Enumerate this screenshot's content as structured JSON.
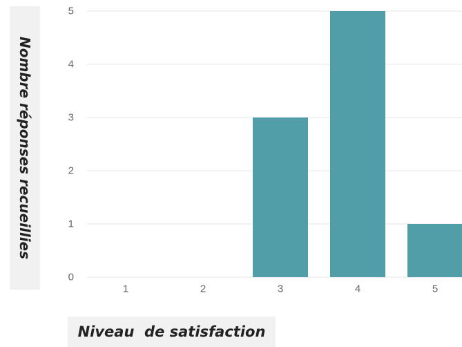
{
  "chart_data": {
    "type": "bar",
    "title": "",
    "xlabel": "Niveau  de satisfaction",
    "ylabel": "Nombre réponses recueillies",
    "categories": [
      "1",
      "2",
      "3",
      "4",
      "5"
    ],
    "values": [
      0,
      0,
      3,
      5,
      1
    ],
    "ylim": [
      0,
      5
    ],
    "yticks": [
      0,
      1,
      2,
      3,
      4,
      5
    ],
    "grid": true,
    "legend": "none",
    "colors": {
      "bar": "#519ea9",
      "grid": "#e6e6e6",
      "tick_text": "#666666",
      "label_background": "#f1f1f1"
    }
  }
}
